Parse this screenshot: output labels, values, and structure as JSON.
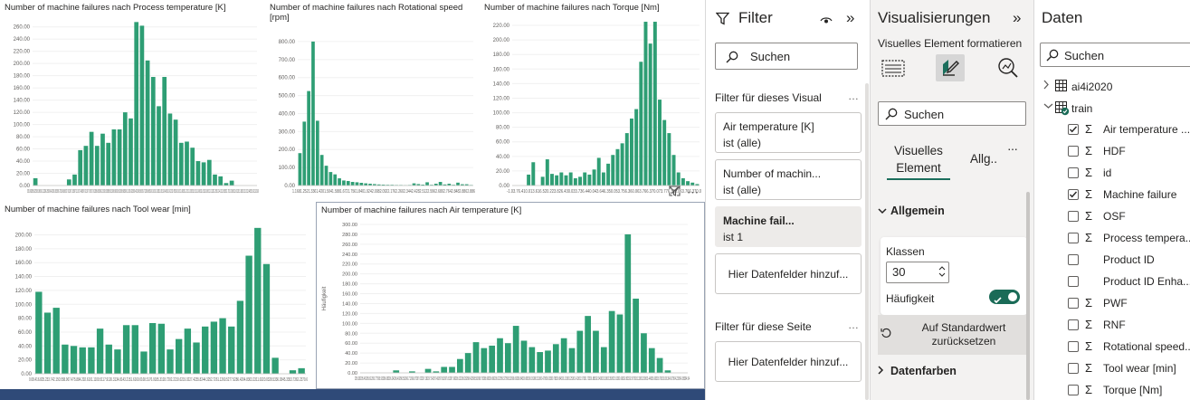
{
  "canvas": {
    "chart_data": [
      {
        "type": "bar",
        "title": "Number of machine failures nach Process temperature [K]",
        "yticks": [
          "260.00",
          "240.00",
          "220.00",
          "200.00",
          "180.00",
          "160.00",
          "140.00",
          "120.00",
          "100.00",
          "80.00",
          "60.00",
          "40.00",
          "20.00",
          "0.00"
        ],
        "xlabel_text": "305.69305.82305.98306.11306.28306.42306.58306.71306.88307.01307.18307.31307.48307.61307.78307.91308.08308.21308.38308.51308.68308.81308.98309.11309.28309.41309.58309.71309.88310.01310.18310.31310.48310.61310.78310.91311.08311.21311.38311.51311.68311.81311.98312.11312.28312.41312.58312.71312.88313.01313.18313.31313.48313.61313.60",
        "ylim": [
          0,
          270
        ],
        "values": [
          12,
          0,
          0,
          0,
          0,
          0,
          10,
          18,
          58,
          65,
          88,
          65,
          85,
          70,
          92,
          92,
          120,
          110,
          268,
          262,
          205,
          178,
          130,
          178,
          118,
          108,
          70,
          72,
          62,
          40,
          38,
          42,
          18,
          15,
          4,
          8,
          0,
          0,
          0,
          0
        ]
      },
      {
        "type": "bar",
        "title": "Number of machine failures nach Rotational speed [rpm]",
        "yticks": [
          "800.00",
          "700.00",
          "600.00",
          "500.00",
          "400.00",
          "300.00",
          "200.00",
          "100.00",
          "0.00"
        ],
        "xlabel_text": "1.1681.2521.3361.4201.5041.5881.6721.7561.8401.9242.0082.0922.1762.2602.3442.4282.5122.5962.6802.7642.8482.8862.886",
        "ylim": [
          0,
          860
        ],
        "values": [
          180,
          355,
          525,
          800,
          360,
          170,
          110,
          75,
          62,
          40,
          28,
          25,
          20,
          18,
          15,
          12,
          10,
          8,
          6,
          5,
          4,
          4,
          3,
          3,
          2,
          3,
          12,
          8,
          5,
          18,
          4,
          10,
          20,
          6,
          10,
          4,
          16,
          7,
          7,
          3
        ]
      },
      {
        "type": "bar",
        "title": "Number of machine failures nach Torque [Nm]",
        "yticks": [
          "220.00",
          "200.00",
          "180.00",
          "160.00",
          "140.00",
          "120.00",
          "100.00",
          "80.00",
          "60.00",
          "40.00",
          "20.00",
          "0.00"
        ],
        "xlabel_text": "-1.03.76.410.013.616.520.223.826.430.033.736.440.043.646.350.053.756.360.063.766.370.073.776.360.063.766.370.0",
        "ylim": [
          0,
          230
        ],
        "values": [
          0,
          0,
          0,
          15,
          32,
          0,
          12,
          36,
          16,
          14,
          18,
          14,
          18,
          10,
          12,
          18,
          15,
          22,
          38,
          18,
          30,
          42,
          50,
          58,
          72,
          92,
          105,
          170,
          225,
          195,
          225,
          118,
          90,
          72,
          42,
          18,
          10,
          6,
          4,
          2
        ]
      },
      {
        "type": "bar",
        "title": "Number of machine failures nach Tool wear [min]",
        "yticks": [
          "200.00",
          "180.00",
          "160.00",
          "140.00",
          "120.00",
          "100.00",
          "80.00",
          "60.00",
          "40.00",
          "20.00",
          "0.00"
        ],
        "xlabel_text": "0.08.416.825.233.742.150.558.967.475.884.292.6101.1109.5117.9126.3134.8143.2151.6160.0168.5176.9185.3193.7202.2210.6219.0227.4235.8244.3252.7261.1269.5277.9286.4294.8303.2311.6320.0328.5336.9345.3353.7362.2370.6",
        "ylim": [
          0,
          215
        ],
        "values": [
          118,
          88,
          95,
          42,
          40,
          38,
          38,
          65,
          42,
          35,
          70,
          70,
          32,
          73,
          72,
          35,
          50,
          65,
          45,
          68,
          75,
          80,
          68,
          105,
          170,
          210,
          158,
          23,
          0,
          5,
          8
        ]
      },
      {
        "type": "bar",
        "title": "Number of machine failures nach Air temperature [K]",
        "yticks": [
          "300.00",
          "280.00",
          "260.00",
          "240.00",
          "220.00",
          "200.00",
          "180.00",
          "160.00",
          "140.00",
          "120.00",
          "100.00",
          "80.00",
          "60.00",
          "40.00",
          "20.00",
          "0.00"
        ],
        "ylabel": "Häufigkeit",
        "xlabel_text": "295.30295.45295.61295.77295.93296.08296.24296.40296.55296.71296.87297.02297.18297.34297.49297.65297.81297.96298.12298.28298.43298.59298.75298.90299.06299.22299.37299.53299.69299.84300.00300.16300.31300.47300.63300.78300.94301.10301.25301.41301.57301.72301.88302.04302.19302.35302.51302.66302.82302.97303.13303.29303.44303.60303.76303.91304.07304.23304.38304.54",
        "ylim": [
          0,
          300
        ],
        "values": [
          0,
          0,
          0,
          0,
          5,
          0,
          3,
          0,
          8,
          3,
          12,
          12,
          28,
          40,
          62,
          50,
          55,
          70,
          60,
          95,
          65,
          52,
          42,
          45,
          58,
          70,
          50,
          85,
          115,
          85,
          52,
          125,
          118,
          280,
          150,
          80,
          50,
          30,
          5,
          0,
          0
        ]
      }
    ]
  },
  "filter_pane": {
    "title": "Filter",
    "search_placeholder": "Suchen",
    "visual_section": "Filter für dieses Visual",
    "page_section": "Filter für diese Seite",
    "cards": [
      {
        "name": "Air temperature [K]",
        "state": "ist (alle)"
      },
      {
        "name": "Number of machin...",
        "state": "ist (alle)"
      },
      {
        "name": "Machine fail...",
        "state": "ist 1"
      }
    ],
    "add_fields": "Hier Datenfelder hinzuf...",
    "add_fields_page": "Hier Datenfelder hinzuf..."
  },
  "viz_pane": {
    "title": "Visualisierungen",
    "subtitle": "Visuelles Element formatieren",
    "search_placeholder": "Suchen",
    "tab_visual_1": "Visuelles",
    "tab_visual_2": "Element",
    "tab_general": "Allg..",
    "more": "...",
    "section_general": "Allgemein",
    "klassen_label": "Klassen",
    "klassen_value": "30",
    "frequency_label": "Häufigkeit",
    "frequency_on": true,
    "reset_line1": "Auf Standardwert",
    "reset_line2": "zurücksetzen",
    "section_colors": "Datenfarben"
  },
  "data_pane": {
    "title": "Daten",
    "search_placeholder": "Suchen",
    "tables": [
      {
        "name": "ai4i2020"
      },
      {
        "name": "train"
      }
    ],
    "fields": [
      {
        "name": "Air temperature ...",
        "checked": true,
        "sigma": true
      },
      {
        "name": "HDF",
        "checked": false,
        "sigma": true
      },
      {
        "name": "id",
        "checked": false,
        "sigma": true
      },
      {
        "name": "Machine failure",
        "checked": true,
        "sigma": true
      },
      {
        "name": "OSF",
        "checked": false,
        "sigma": true
      },
      {
        "name": "Process tempera...",
        "checked": false,
        "sigma": true
      },
      {
        "name": "Product ID",
        "checked": false,
        "sigma": false
      },
      {
        "name": "Product ID Enha...",
        "checked": false,
        "sigma": false
      },
      {
        "name": "PWF",
        "checked": false,
        "sigma": true
      },
      {
        "name": "RNF",
        "checked": false,
        "sigma": true
      },
      {
        "name": "Rotational speed...",
        "checked": false,
        "sigma": true
      },
      {
        "name": "Tool wear [min]",
        "checked": false,
        "sigma": true
      },
      {
        "name": "Torque [Nm]",
        "checked": false,
        "sigma": true
      }
    ]
  },
  "colors": {
    "bar": "#2e9e74",
    "accent": "#1b6e5c",
    "check": "#1a6b57"
  }
}
